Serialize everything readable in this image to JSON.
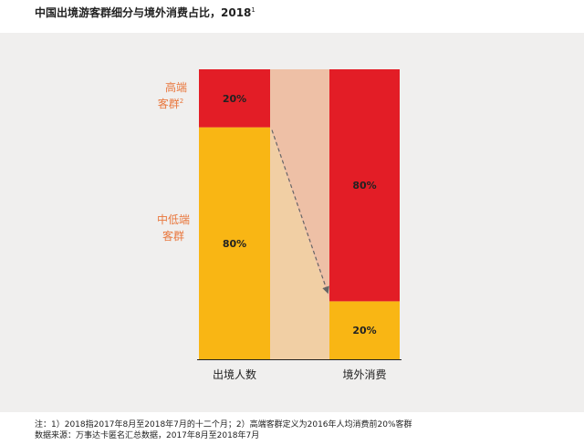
{
  "title": "中国出境游客群细分与境外消费占比，2018",
  "title_sup": "1",
  "chart_data": {
    "type": "bar",
    "stacked": true,
    "percent": true,
    "categories": [
      "出境人数",
      "境外消费"
    ],
    "series": [
      {
        "name": "中低端客群",
        "values": [
          80,
          20
        ],
        "color": "#f9b614"
      },
      {
        "name": "高端客群",
        "values": [
          20,
          80
        ],
        "color": "#e31d26"
      }
    ],
    "data_labels": {
      "left_top": "20%",
      "left_bottom": "80%",
      "right_top": "80%",
      "right_bottom": "20%"
    },
    "segment_labels": {
      "high_line1": "高端",
      "high_line2": "客群",
      "high_sup": "2",
      "low_line1": "中低端",
      "low_line2": "客群",
      "color": "#e9773d"
    },
    "ylim": [
      0,
      100
    ],
    "xlabel": "",
    "ylabel": "",
    "grid": false,
    "legend": "none",
    "colors": {
      "panel": "#f0efee",
      "connector_top": "#eec0a6",
      "connector_bottom": "#f1cfa4",
      "arrow": "#666666"
    }
  },
  "notes": {
    "line1": "注：1）2018指2017年8月至2018年7月的十二个月；2）高端客群定义为2016年人均消费前20%客群",
    "line2": "数据来源：万事达卡匿名汇总数据，2017年8月至2018年7月"
  }
}
